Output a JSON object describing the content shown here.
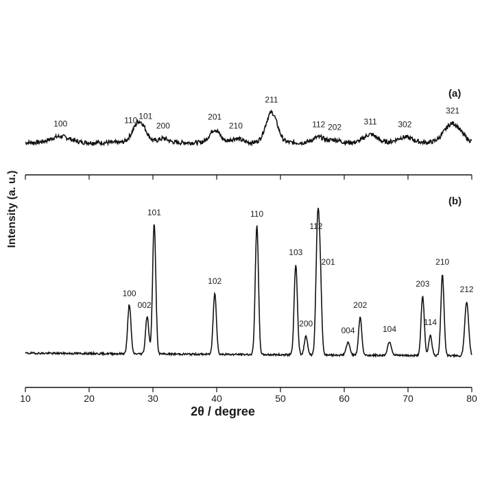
{
  "chart_data": {
    "type": "line",
    "xlabel": "2θ / degree",
    "ylabel": "Intensity (a. u.)",
    "xlim": [
      10,
      80
    ],
    "x_ticks": [
      10,
      20,
      30,
      40,
      50,
      60,
      70,
      80
    ],
    "grid": false,
    "line_color": "#111111",
    "panels": [
      {
        "panel_label": "(a)",
        "baseline": 12,
        "noise": 3.2,
        "peaks": [
          {
            "label": "100",
            "x": 15.5,
            "height": 9,
            "width": 1.5
          },
          {
            "label": "110",
            "x": 27.4,
            "height": 14,
            "width": 0.9
          },
          {
            "label": "101",
            "x": 28.2,
            "height": 20,
            "width": 0.9
          },
          {
            "label": "200",
            "x": 31.6,
            "height": 6,
            "width": 0.8
          },
          {
            "label": "201",
            "x": 39.7,
            "height": 19,
            "width": 0.8
          },
          {
            "label": "210",
            "x": 43.0,
            "height": 6,
            "width": 0.9
          },
          {
            "label": "211",
            "x": 48.6,
            "height": 44,
            "width": 0.9
          },
          {
            "label": "112",
            "x": 56.0,
            "height": 8,
            "width": 0.9
          },
          {
            "label": "202",
            "x": 58.5,
            "height": 4,
            "width": 0.8
          },
          {
            "label": "311",
            "x": 64.1,
            "height": 12,
            "width": 1.0
          },
          {
            "label": "302",
            "x": 69.5,
            "height": 8,
            "width": 1.2
          },
          {
            "label": "321",
            "x": 77.0,
            "height": 28,
            "width": 1.3
          }
        ]
      },
      {
        "panel_label": "(b)",
        "baseline_start": 5,
        "baseline_end": 1,
        "noise": 1.4,
        "peaks": [
          {
            "label": "100",
            "x": 26.3,
            "height": 72,
            "width": 0.25
          },
          {
            "label": "002",
            "x": 29.1,
            "height": 55,
            "width": 0.25
          },
          {
            "label": "101",
            "x": 30.2,
            "height": 190,
            "width": 0.25
          },
          {
            "label": "102",
            "x": 39.7,
            "height": 90,
            "width": 0.25
          },
          {
            "label": "110",
            "x": 46.3,
            "height": 188,
            "width": 0.25
          },
          {
            "label": "103",
            "x": 52.4,
            "height": 132,
            "width": 0.25
          },
          {
            "label": "200",
            "x": 54.0,
            "height": 28,
            "width": 0.25
          },
          {
            "label": "112",
            "x": 55.8,
            "height": 170,
            "width": 0.25
          },
          {
            "label": "201",
            "x": 56.2,
            "height": 118,
            "width": 0.25
          },
          {
            "label": "004",
            "x": 60.6,
            "height": 18,
            "width": 0.3
          },
          {
            "label": "202",
            "x": 62.5,
            "height": 55,
            "width": 0.25
          },
          {
            "label": "104",
            "x": 67.1,
            "height": 20,
            "width": 0.3
          },
          {
            "label": "203",
            "x": 72.3,
            "height": 86,
            "width": 0.25
          },
          {
            "label": "114",
            "x": 73.5,
            "height": 30,
            "width": 0.25
          },
          {
            "label": "210",
            "x": 75.4,
            "height": 118,
            "width": 0.25
          },
          {
            "label": "212",
            "x": 79.2,
            "height": 78,
            "width": 0.3
          }
        ]
      }
    ]
  }
}
